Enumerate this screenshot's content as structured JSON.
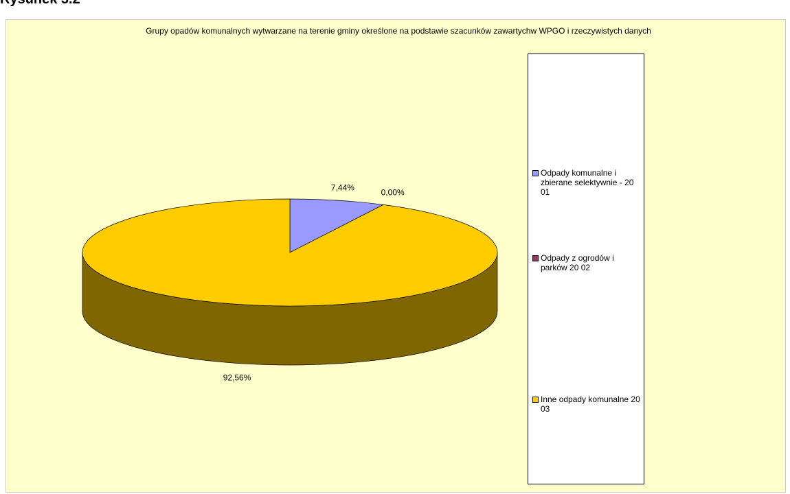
{
  "heading": "Rysunek 3.2",
  "chart_data": {
    "type": "pie3d",
    "title": "Grupy opadów komunalnych wytwarzane na terenie gminy określone na podstawie szacunków zawartychw WPGO i rzeczywistych danych",
    "categories": [
      "Odpady komunalne i zbierane selektywnie - 20 01",
      "Odpady z ogrodów i parków 20 02",
      "Inne odpady komunalne 20 03"
    ],
    "values": [
      7.44,
      0,
      92.56
    ],
    "value_labels": [
      "7,44%",
      "0,00%",
      "92,56%"
    ],
    "colors": [
      "#9999ff",
      "#993366",
      "#ffcc00"
    ]
  }
}
